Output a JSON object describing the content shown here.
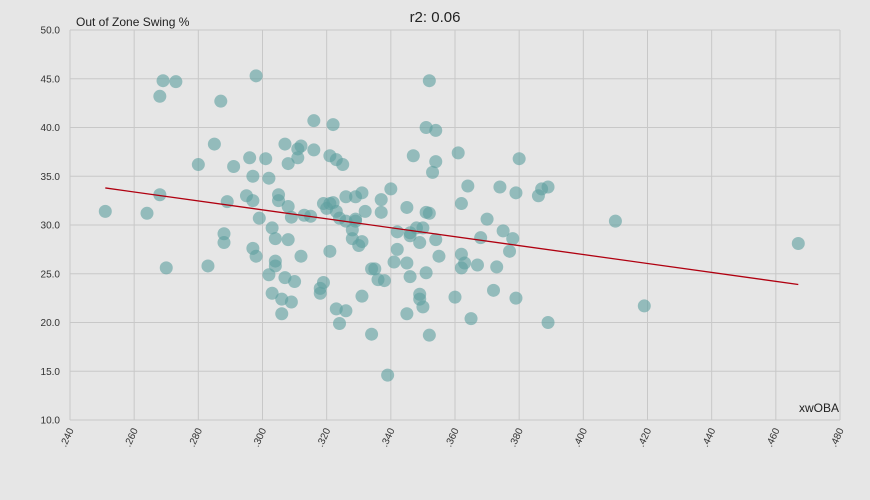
{
  "chart_data": {
    "type": "scatter",
    "title": "r2: 0.06",
    "xlabel": "xwOBA",
    "ylabel": "Out of Zone Swing %",
    "xlim": [
      0.24,
      0.48
    ],
    "ylim": [
      10.0,
      50.0
    ],
    "x_ticks": [
      ".240",
      ".260",
      ".280",
      ".300",
      ".320",
      ".340",
      ".360",
      ".380",
      ".400",
      ".420",
      ".440",
      ".460",
      ".480"
    ],
    "x_tick_values": [
      0.24,
      0.26,
      0.28,
      0.3,
      0.32,
      0.34,
      0.36,
      0.38,
      0.4,
      0.42,
      0.44,
      0.46,
      0.48
    ],
    "y_ticks": [
      "10.0",
      "15.0",
      "20.0",
      "25.0",
      "30.0",
      "35.0",
      "40.0",
      "45.0",
      "50.0"
    ],
    "y_tick_values": [
      10,
      15,
      20,
      25,
      30,
      35,
      40,
      45,
      50
    ],
    "grid": true,
    "colors": {
      "background": "#e6e6e6",
      "grid": "#c8c8c8",
      "point": "#5fa0a0",
      "trendline": "#b00010"
    },
    "trendline": {
      "x": [
        0.251,
        0.467
      ],
      "y": [
        33.8,
        23.9
      ]
    },
    "points": [
      {
        "x": 0.251,
        "y": 31.4
      },
      {
        "x": 0.264,
        "y": 31.2
      },
      {
        "x": 0.268,
        "y": 43.2
      },
      {
        "x": 0.269,
        "y": 44.8
      },
      {
        "x": 0.268,
        "y": 33.1
      },
      {
        "x": 0.27,
        "y": 25.6
      },
      {
        "x": 0.273,
        "y": 44.7
      },
      {
        "x": 0.28,
        "y": 36.2
      },
      {
        "x": 0.283,
        "y": 25.8
      },
      {
        "x": 0.285,
        "y": 38.3
      },
      {
        "x": 0.287,
        "y": 42.7
      },
      {
        "x": 0.288,
        "y": 28.2
      },
      {
        "x": 0.288,
        "y": 29.1
      },
      {
        "x": 0.289,
        "y": 32.4
      },
      {
        "x": 0.291,
        "y": 36.0
      },
      {
        "x": 0.295,
        "y": 33.0
      },
      {
        "x": 0.296,
        "y": 36.9
      },
      {
        "x": 0.297,
        "y": 35.0
      },
      {
        "x": 0.297,
        "y": 32.5
      },
      {
        "x": 0.297,
        "y": 27.6
      },
      {
        "x": 0.298,
        "y": 45.3
      },
      {
        "x": 0.298,
        "y": 26.8
      },
      {
        "x": 0.299,
        "y": 30.7
      },
      {
        "x": 0.301,
        "y": 36.8
      },
      {
        "x": 0.302,
        "y": 34.8
      },
      {
        "x": 0.302,
        "y": 24.9
      },
      {
        "x": 0.303,
        "y": 29.7
      },
      {
        "x": 0.303,
        "y": 23.0
      },
      {
        "x": 0.304,
        "y": 26.3
      },
      {
        "x": 0.304,
        "y": 25.8
      },
      {
        "x": 0.304,
        "y": 28.6
      },
      {
        "x": 0.305,
        "y": 33.1
      },
      {
        "x": 0.305,
        "y": 32.5
      },
      {
        "x": 0.306,
        "y": 22.4
      },
      {
        "x": 0.306,
        "y": 20.9
      },
      {
        "x": 0.307,
        "y": 38.3
      },
      {
        "x": 0.307,
        "y": 24.6
      },
      {
        "x": 0.308,
        "y": 36.3
      },
      {
        "x": 0.308,
        "y": 31.9
      },
      {
        "x": 0.308,
        "y": 28.5
      },
      {
        "x": 0.309,
        "y": 30.8
      },
      {
        "x": 0.309,
        "y": 22.1
      },
      {
        "x": 0.31,
        "y": 24.2
      },
      {
        "x": 0.311,
        "y": 37.8
      },
      {
        "x": 0.311,
        "y": 36.9
      },
      {
        "x": 0.312,
        "y": 38.1
      },
      {
        "x": 0.312,
        "y": 26.8
      },
      {
        "x": 0.313,
        "y": 31.0
      },
      {
        "x": 0.315,
        "y": 30.9
      },
      {
        "x": 0.316,
        "y": 40.7
      },
      {
        "x": 0.316,
        "y": 37.7
      },
      {
        "x": 0.318,
        "y": 23.0
      },
      {
        "x": 0.318,
        "y": 23.5
      },
      {
        "x": 0.319,
        "y": 24.1
      },
      {
        "x": 0.319,
        "y": 32.2
      },
      {
        "x": 0.32,
        "y": 31.7
      },
      {
        "x": 0.321,
        "y": 32.2
      },
      {
        "x": 0.321,
        "y": 27.3
      },
      {
        "x": 0.321,
        "y": 37.1
      },
      {
        "x": 0.322,
        "y": 40.3
      },
      {
        "x": 0.322,
        "y": 32.3
      },
      {
        "x": 0.323,
        "y": 31.4
      },
      {
        "x": 0.323,
        "y": 36.7
      },
      {
        "x": 0.323,
        "y": 21.4
      },
      {
        "x": 0.324,
        "y": 19.9
      },
      {
        "x": 0.324,
        "y": 30.7
      },
      {
        "x": 0.325,
        "y": 36.2
      },
      {
        "x": 0.326,
        "y": 32.9
      },
      {
        "x": 0.326,
        "y": 30.4
      },
      {
        "x": 0.326,
        "y": 21.2
      },
      {
        "x": 0.328,
        "y": 29.5
      },
      {
        "x": 0.328,
        "y": 28.6
      },
      {
        "x": 0.329,
        "y": 32.9
      },
      {
        "x": 0.329,
        "y": 30.6
      },
      {
        "x": 0.329,
        "y": 30.4
      },
      {
        "x": 0.33,
        "y": 27.9
      },
      {
        "x": 0.331,
        "y": 33.3
      },
      {
        "x": 0.331,
        "y": 28.3
      },
      {
        "x": 0.331,
        "y": 22.7
      },
      {
        "x": 0.332,
        "y": 31.4
      },
      {
        "x": 0.334,
        "y": 25.5
      },
      {
        "x": 0.334,
        "y": 18.8
      },
      {
        "x": 0.335,
        "y": 25.5
      },
      {
        "x": 0.336,
        "y": 24.4
      },
      {
        "x": 0.337,
        "y": 32.6
      },
      {
        "x": 0.337,
        "y": 31.3
      },
      {
        "x": 0.338,
        "y": 24.3
      },
      {
        "x": 0.339,
        "y": 14.6
      },
      {
        "x": 0.34,
        "y": 33.7
      },
      {
        "x": 0.341,
        "y": 26.2
      },
      {
        "x": 0.342,
        "y": 29.3
      },
      {
        "x": 0.342,
        "y": 27.5
      },
      {
        "x": 0.345,
        "y": 31.8
      },
      {
        "x": 0.345,
        "y": 26.1
      },
      {
        "x": 0.345,
        "y": 20.9
      },
      {
        "x": 0.346,
        "y": 29.2
      },
      {
        "x": 0.346,
        "y": 28.9
      },
      {
        "x": 0.346,
        "y": 24.7
      },
      {
        "x": 0.347,
        "y": 37.1
      },
      {
        "x": 0.348,
        "y": 29.7
      },
      {
        "x": 0.349,
        "y": 28.2
      },
      {
        "x": 0.349,
        "y": 22.9
      },
      {
        "x": 0.349,
        "y": 22.4
      },
      {
        "x": 0.35,
        "y": 29.7
      },
      {
        "x": 0.35,
        "y": 21.6
      },
      {
        "x": 0.351,
        "y": 40.0
      },
      {
        "x": 0.351,
        "y": 31.3
      },
      {
        "x": 0.351,
        "y": 25.1
      },
      {
        "x": 0.352,
        "y": 44.8
      },
      {
        "x": 0.352,
        "y": 31.2
      },
      {
        "x": 0.352,
        "y": 18.7
      },
      {
        "x": 0.353,
        "y": 35.4
      },
      {
        "x": 0.354,
        "y": 39.7
      },
      {
        "x": 0.354,
        "y": 36.5
      },
      {
        "x": 0.354,
        "y": 28.5
      },
      {
        "x": 0.355,
        "y": 26.8
      },
      {
        "x": 0.36,
        "y": 22.6
      },
      {
        "x": 0.361,
        "y": 37.4
      },
      {
        "x": 0.362,
        "y": 32.2
      },
      {
        "x": 0.362,
        "y": 27.0
      },
      {
        "x": 0.362,
        "y": 25.6
      },
      {
        "x": 0.363,
        "y": 26.1
      },
      {
        "x": 0.364,
        "y": 34.0
      },
      {
        "x": 0.365,
        "y": 20.4
      },
      {
        "x": 0.367,
        "y": 25.9
      },
      {
        "x": 0.368,
        "y": 28.7
      },
      {
        "x": 0.37,
        "y": 30.6
      },
      {
        "x": 0.372,
        "y": 23.3
      },
      {
        "x": 0.373,
        "y": 25.7
      },
      {
        "x": 0.374,
        "y": 33.9
      },
      {
        "x": 0.375,
        "y": 29.4
      },
      {
        "x": 0.377,
        "y": 27.3
      },
      {
        "x": 0.378,
        "y": 28.6
      },
      {
        "x": 0.379,
        "y": 33.3
      },
      {
        "x": 0.379,
        "y": 22.5
      },
      {
        "x": 0.38,
        "y": 36.8
      },
      {
        "x": 0.386,
        "y": 33.0
      },
      {
        "x": 0.387,
        "y": 33.7
      },
      {
        "x": 0.389,
        "y": 33.9
      },
      {
        "x": 0.389,
        "y": 20.0
      },
      {
        "x": 0.41,
        "y": 30.4
      },
      {
        "x": 0.419,
        "y": 21.7
      },
      {
        "x": 0.467,
        "y": 28.1
      }
    ]
  }
}
